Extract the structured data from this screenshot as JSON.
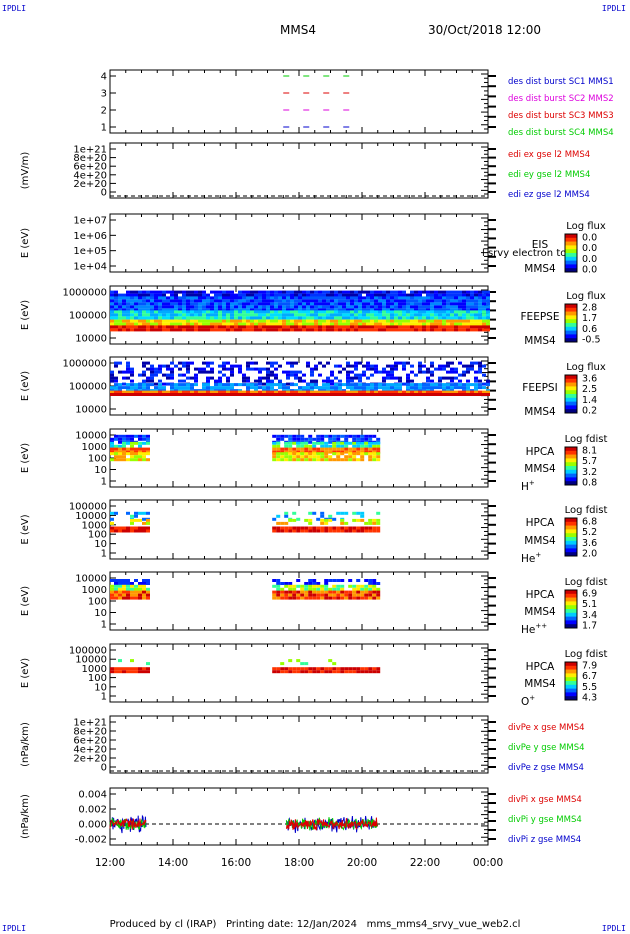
{
  "header": {
    "corner_label": "IPDLI",
    "spacecraft": "MMS4",
    "datetime": "30/Oct/2018 12:00"
  },
  "footer": {
    "produced_by": "Produced by cl (IRAP)",
    "printing_date": "Printing date: 12/Jan/2024",
    "source_file": "mms_mms4_srvy_vue_web2.cl"
  },
  "colors": {
    "mms1": "#0000cc",
    "mms2": "#dd00dd",
    "mms3": "#dd0000",
    "mms4": "#00cc00",
    "x": "#dd0000",
    "y": "#00cc00",
    "z": "#0000cc"
  },
  "chart_data": {
    "type": "heatmap",
    "x_axis": {
      "ticks": [
        "12:00",
        "14:00",
        "16:00",
        "18:00",
        "20:00",
        "22:00",
        "00:00"
      ],
      "range_hours": [
        12,
        24
      ]
    },
    "panels": [
      {
        "id": "des-dist-burst",
        "type": "line",
        "ylabel": "",
        "yticks": [
          "4",
          "3",
          "2",
          "1"
        ],
        "series": [
          {
            "name": "des dist burst SC1 MMS1",
            "color": "#0000cc",
            "y": 1,
            "segments": [
              [
                17.5,
                20.0
              ]
            ]
          },
          {
            "name": "des dist burst SC2 MMS2",
            "color": "#dd00dd",
            "y": 2,
            "segments": [
              [
                17.5,
                20.0
              ]
            ]
          },
          {
            "name": "des dist burst SC3 MMS3",
            "color": "#dd0000",
            "y": 3,
            "segments": [
              [
                17.5,
                20.0
              ]
            ]
          },
          {
            "name": "des dist burst SC4 MMS4",
            "color": "#00cc00",
            "y": 4,
            "segments": [
              [
                17.5,
                20.0
              ]
            ]
          }
        ]
      },
      {
        "id": "edi-e",
        "type": "line",
        "ylabel": "(mV/m)",
        "yticks": [
          "1e+21",
          "8e+20",
          "6e+20",
          "4e+20",
          "2e+20",
          "0"
        ],
        "series": [
          {
            "name": "edi ex gse l2 MMS4",
            "color": "#dd0000"
          },
          {
            "name": "edi ey gse l2 MMS4",
            "color": "#00cc00"
          },
          {
            "name": "edi ez gse l2 MMS4",
            "color": "#0000cc"
          }
        ]
      },
      {
        "id": "eis",
        "type": "heatmap",
        "ylabel": "E (eV)",
        "yticks": [
          "1e+07",
          "1e+06",
          "1e+05",
          "1e+04"
        ],
        "instrument": "EIS",
        "spacecraft": "MMS4",
        "overlay_text": "l srvy electron to",
        "colorbar": {
          "title": "Log flux",
          "ticks": [
            "0.0",
            "0.0",
            "0.0",
            "0.0"
          ]
        }
      },
      {
        "id": "feepse",
        "type": "heatmap",
        "ylabel": "E (eV)",
        "yticks": [
          "1000000",
          "100000",
          "10000"
        ],
        "instrument": "FEEPSE",
        "spacecraft": "MMS4",
        "colorbar": {
          "title": "Log flux",
          "ticks": [
            "2.8",
            "1.7",
            "0.6",
            "-0.5"
          ]
        },
        "coverage_hours": [
          12.0,
          24.0
        ]
      },
      {
        "id": "feepsi",
        "type": "heatmap",
        "ylabel": "E (eV)",
        "yticks": [
          "1000000",
          "100000",
          "10000"
        ],
        "instrument": "FEEPSI",
        "spacecraft": "MMS4",
        "colorbar": {
          "title": "Log flux",
          "ticks": [
            "3.6",
            "2.5",
            "1.4",
            "0.2"
          ]
        },
        "coverage_hours": [
          12.0,
          24.0
        ]
      },
      {
        "id": "hpca-h",
        "type": "heatmap",
        "ylabel": "E (eV)",
        "yticks": [
          "10000",
          "1000",
          "100",
          "10",
          "1"
        ],
        "instrument": "HPCA",
        "spacecraft": "MMS4",
        "species": "H",
        "species_sup": "+",
        "colorbar": {
          "title": "Log fdist",
          "ticks": [
            "8.1",
            "5.7",
            "3.2",
            "0.8"
          ]
        },
        "coverage_hours": [
          [
            12.0,
            13.15
          ],
          [
            17.15,
            20.5
          ]
        ]
      },
      {
        "id": "hpca-he",
        "type": "heatmap",
        "ylabel": "E (eV)",
        "yticks": [
          "100000",
          "10000",
          "1000",
          "100",
          "10",
          "1"
        ],
        "instrument": "HPCA",
        "spacecraft": "MMS4",
        "species": "He",
        "species_sup": "+",
        "colorbar": {
          "title": "Log fdist",
          "ticks": [
            "6.8",
            "5.2",
            "3.6",
            "2.0"
          ]
        },
        "coverage_hours": [
          [
            12.0,
            13.15
          ],
          [
            17.15,
            20.5
          ]
        ]
      },
      {
        "id": "hpca-he2",
        "type": "heatmap",
        "ylabel": "E (eV)",
        "yticks": [
          "10000",
          "1000",
          "100",
          "10",
          "1"
        ],
        "instrument": "HPCA",
        "spacecraft": "MMS4",
        "species": "He",
        "species_sup": "++",
        "colorbar": {
          "title": "Log fdist",
          "ticks": [
            "6.9",
            "5.1",
            "3.4",
            "1.7"
          ]
        },
        "coverage_hours": [
          [
            12.0,
            13.15
          ],
          [
            17.15,
            20.5
          ]
        ]
      },
      {
        "id": "hpca-o",
        "type": "heatmap",
        "ylabel": "E (eV)",
        "yticks": [
          "100000",
          "10000",
          "1000",
          "100",
          "10",
          "1"
        ],
        "instrument": "HPCA",
        "spacecraft": "MMS4",
        "species": "O",
        "species_sup": "+",
        "colorbar": {
          "title": "Log fdist",
          "ticks": [
            "7.9",
            "6.7",
            "5.5",
            "4.3"
          ]
        },
        "coverage_hours": [
          [
            12.0,
            13.15
          ],
          [
            17.15,
            20.5
          ]
        ]
      },
      {
        "id": "divpe",
        "type": "line",
        "ylabel": "(nPa/km)",
        "yticks": [
          "1e+21",
          "8e+20",
          "6e+20",
          "4e+20",
          "2e+20",
          "0"
        ],
        "series": [
          {
            "name": "divPe x gse MMS4",
            "color": "#dd0000"
          },
          {
            "name": "divPe y gse MMS4",
            "color": "#00cc00"
          },
          {
            "name": "divPe z gse MMS4",
            "color": "#0000cc"
          }
        ]
      },
      {
        "id": "divpi",
        "type": "line",
        "ylabel": "(nPa/km)",
        "yticks": [
          "0.004",
          "0.002",
          "0.000",
          "-0.002"
        ],
        "ylim": [
          -0.0025,
          0.005
        ],
        "series": [
          {
            "name": "divPi x gse MMS4",
            "color": "#dd0000"
          },
          {
            "name": "divPi y gse MMS4",
            "color": "#00cc00"
          },
          {
            "name": "divPi z gse MMS4",
            "color": "#0000cc"
          }
        ],
        "coverage_hours": [
          [
            12.0,
            13.15
          ],
          [
            17.6,
            20.5
          ]
        ]
      }
    ]
  }
}
